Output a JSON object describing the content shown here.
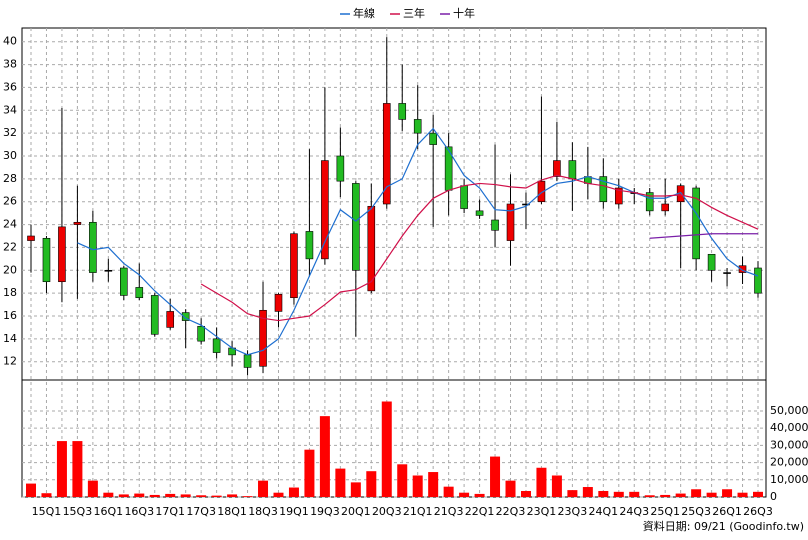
{
  "chart_data": {
    "type": "candlestick",
    "categories": [
      null,
      "15Q1",
      null,
      "15Q3",
      null,
      "16Q1",
      null,
      "16Q3",
      null,
      "17Q1",
      null,
      "17Q3",
      null,
      "18Q1",
      null,
      "18Q3",
      null,
      "19Q1",
      null,
      "19Q3",
      null,
      "20Q1",
      null,
      "20Q3",
      null,
      "21Q1",
      null,
      "21Q3",
      null,
      "22Q1",
      null,
      "22Q3",
      null,
      "23Q1",
      null,
      "23Q3",
      null,
      "24Q1",
      null,
      "24Q3",
      null,
      "25Q1",
      null,
      "25Q3",
      null,
      "26Q1",
      null,
      "26Q3"
    ],
    "open": [
      22.6,
      22.8,
      19,
      24,
      24.2,
      20,
      20.2,
      18.5,
      17.8,
      15,
      16.3,
      15.1,
      14,
      13.2,
      12.6,
      11.6,
      16.4,
      17.6,
      23.4,
      21,
      30,
      27.6,
      18.2,
      25.8,
      34.6,
      33.2,
      32,
      30.8,
      27.4,
      25.2,
      24.4,
      22.6,
      25.8,
      26,
      28.2,
      29.6,
      28.2,
      28.2,
      25.8,
      26.8,
      26.8,
      25.2,
      26,
      27.2,
      21.4,
      19.8,
      19.8,
      20.2
    ],
    "high": [
      24,
      23,
      34.2,
      27.4,
      25.2,
      21,
      20.4,
      20.6,
      18,
      17.5,
      16.6,
      15.8,
      15,
      13.8,
      13,
      19,
      18,
      23.4,
      30.6,
      36,
      32.5,
      27.8,
      27.6,
      40.4,
      38,
      36.2,
      33.6,
      32,
      28,
      26.2,
      31,
      28.4,
      26.8,
      35.2,
      33,
      31.2,
      30.8,
      29.8,
      28,
      27.2,
      27.2,
      28,
      27.6,
      27.4,
      21.4,
      20.2,
      21.2,
      20.8
    ],
    "low": [
      19.8,
      18,
      17.2,
      17.5,
      19,
      19,
      17.4,
      17.4,
      14.2,
      14.8,
      13.2,
      13.5,
      12.3,
      11.6,
      10.8,
      11,
      15,
      17,
      19.5,
      20.5,
      26.4,
      14.2,
      18,
      25.4,
      32.2,
      30.6,
      23.8,
      24.8,
      25,
      24.5,
      22,
      20.4,
      23.6,
      25.8,
      27.8,
      25.2,
      26.2,
      25.4,
      25.4,
      25.8,
      24.8,
      24.8,
      20.2,
      20,
      19,
      18.6,
      18.8,
      17.6
    ],
    "close": [
      23,
      19,
      23.8,
      24.2,
      19.8,
      20,
      17.8,
      17.6,
      14.4,
      16.4,
      15.6,
      13.8,
      12.8,
      12.6,
      11.5,
      16.5,
      17.9,
      23.2,
      21,
      29.6,
      27.8,
      20,
      25.6,
      34.6,
      33.2,
      32,
      31,
      27,
      25.4,
      24.8,
      23.5,
      25.8,
      25.8,
      27.8,
      29.6,
      28,
      27.6,
      26,
      27.2,
      26.8,
      25.2,
      25.8,
      27.4,
      21,
      20,
      19.8,
      20.4,
      18
    ],
    "up_color": "#ee0000",
    "down_color": "#22bb22",
    "series": [
      {
        "name": "年線",
        "color": "#1e6fd0",
        "values": [
          null,
          null,
          null,
          22.4,
          21.8,
          22,
          20.6,
          19.6,
          18.2,
          17,
          15.8,
          15.2,
          14.2,
          13.2,
          12.6,
          13,
          14,
          16.5,
          19.5,
          22.5,
          25.3,
          24.3,
          25.4,
          27.3,
          28,
          31,
          32.4,
          30.5,
          28.3,
          27.2,
          25.3,
          25.2,
          25.6,
          26.8,
          27.6,
          27.8,
          28.2,
          27.8,
          27.4,
          26.8,
          26.3,
          26.3,
          26.8,
          25,
          22.8,
          21,
          20,
          19.5
        ]
      },
      {
        "name": "三年",
        "color": "#d0104a",
        "values": [
          null,
          null,
          null,
          null,
          null,
          null,
          null,
          null,
          null,
          null,
          null,
          18.8,
          18,
          17.2,
          16.2,
          15.8,
          15.6,
          15.8,
          16,
          17,
          18.1,
          18.3,
          19,
          21,
          23,
          24.8,
          26.3,
          27,
          27.4,
          27.6,
          27.5,
          27.3,
          27.2,
          27.9,
          28.3,
          28,
          27.6,
          27.4,
          27,
          26.8,
          26.5,
          26.5,
          26.6,
          26.3,
          25.5,
          24.8,
          24.2,
          23.6
        ]
      },
      {
        "name": "十年",
        "color": "#7a1fa8",
        "values": [
          null,
          null,
          null,
          null,
          null,
          null,
          null,
          null,
          null,
          null,
          null,
          null,
          null,
          null,
          null,
          null,
          null,
          null,
          null,
          null,
          null,
          null,
          null,
          null,
          null,
          null,
          null,
          null,
          null,
          null,
          null,
          null,
          null,
          null,
          null,
          null,
          null,
          null,
          null,
          null,
          22.8,
          22.9,
          23,
          23.1,
          23.2,
          23.2,
          23.2,
          23.2
        ]
      }
    ],
    "ylim": [
      10.4,
      41.2
    ],
    "yticks": [
      12,
      14,
      16,
      18,
      20,
      22,
      24,
      26,
      28,
      30,
      32,
      34,
      36,
      38,
      40
    ],
    "grid": true,
    "volume": {
      "color": "#ff0000",
      "values": [
        7800,
        2200,
        32500,
        32500,
        9500,
        2500,
        1500,
        2000,
        1200,
        1800,
        1500,
        1000,
        800,
        1500,
        500,
        9500,
        2500,
        5500,
        27500,
        47000,
        16500,
        8500,
        15000,
        55500,
        19000,
        12500,
        14500,
        6000,
        2500,
        1800,
        23500,
        9500,
        3500,
        17000,
        12500,
        4000,
        5800,
        3500,
        3000,
        3000,
        1000,
        1200,
        2000,
        4500,
        2500,
        4500,
        2500,
        3000
      ],
      "ylim": [
        0,
        68000
      ],
      "yticks": [
        0,
        {
          "value": 10000,
          "label": "10,000"
        },
        {
          "value": 20000,
          "label": "20,000"
        },
        {
          "value": 30000,
          "label": "30,000"
        },
        {
          "value": 40000,
          "label": "40,000"
        },
        {
          "value": 50000,
          "label": "50,000"
        }
      ]
    },
    "source": "資料日期: 09/21 (Goodinfo.tw)"
  }
}
